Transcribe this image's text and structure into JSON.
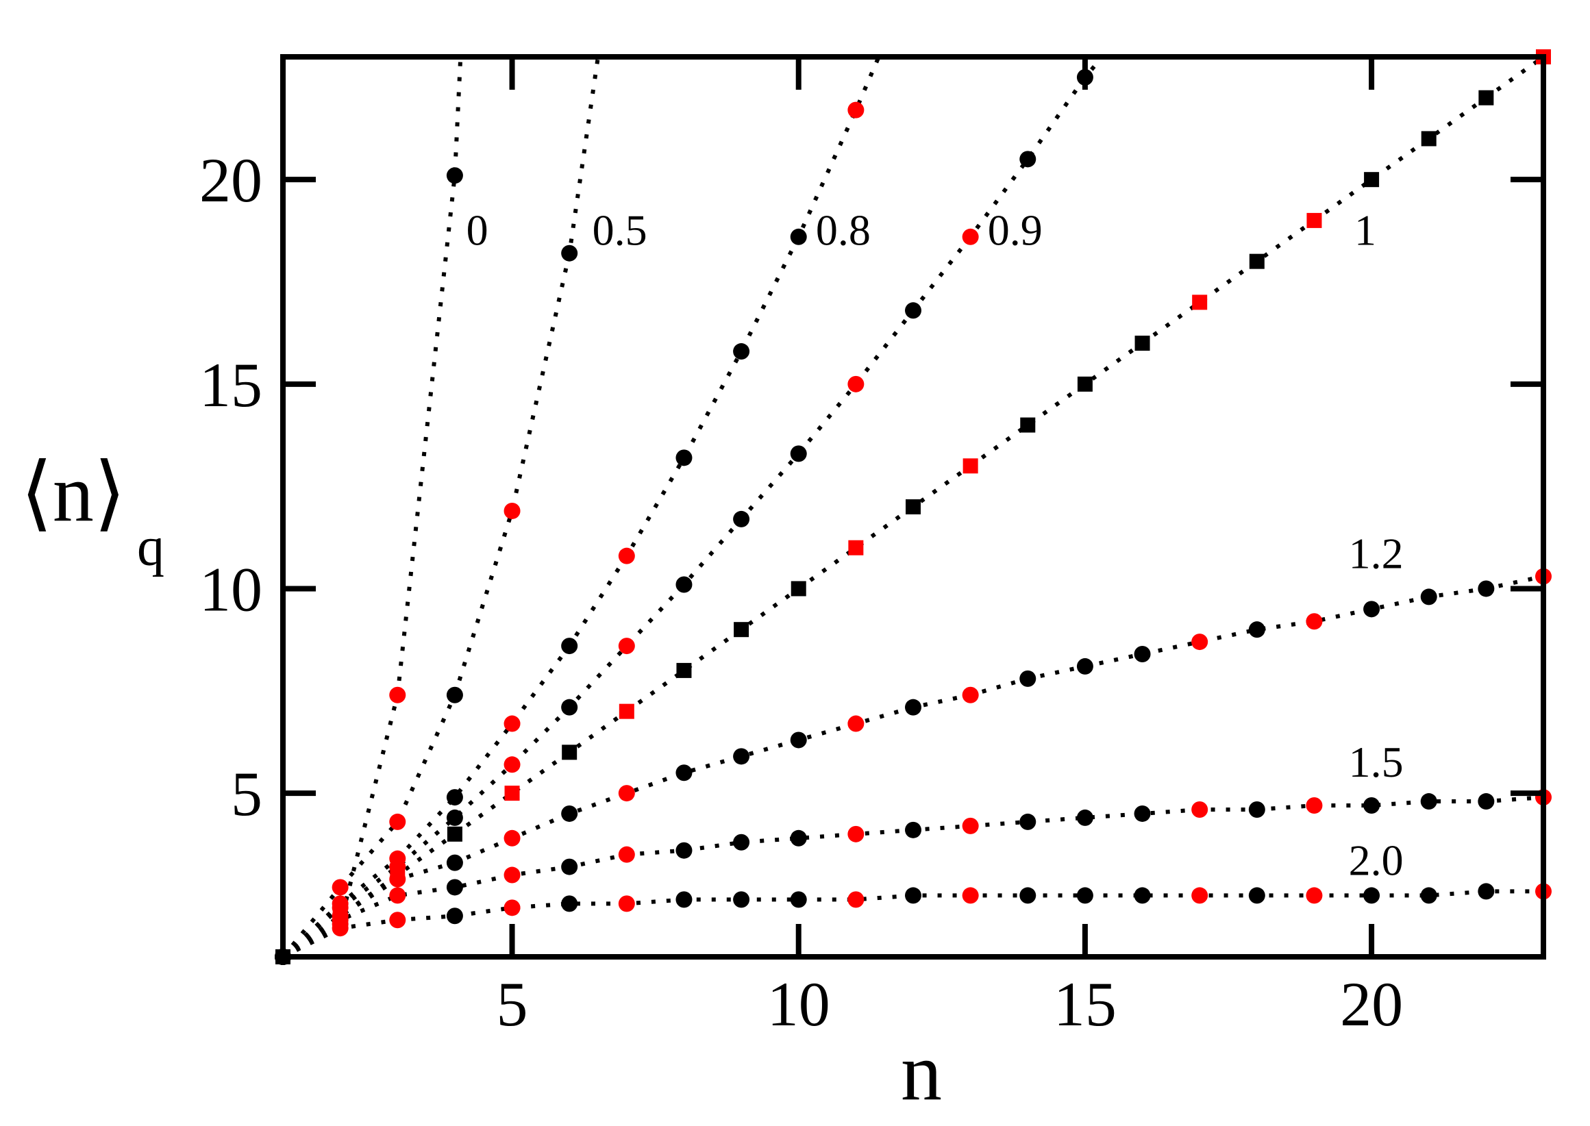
{
  "chart_data": {
    "type": "scatter",
    "title": "",
    "xlabel": "n",
    "ylabel": "⟨n⟩_q",
    "ylabel_main": "⟨n⟩",
    "ylabel_sub": "q",
    "xlim": [
      1,
      23
    ],
    "ylim": [
      1,
      23
    ],
    "xticks": [
      5,
      10,
      15,
      20
    ],
    "yticks": [
      5,
      10,
      15,
      20
    ],
    "grid": false,
    "legend": "none (inline series labels)",
    "marker_colors": {
      "composite": "#000000",
      "prime": "#ff0000"
    },
    "line_style": "dotted",
    "series": [
      {
        "name": "0",
        "marker": "circle",
        "label_pos": [
          4.2,
          18.4
        ],
        "points": [
          [
            1,
            1
          ],
          [
            2,
            1.8
          ],
          [
            3,
            7.4
          ],
          [
            4,
            20.1
          ]
        ],
        "line_end": [
          4.1,
          23
        ]
      },
      {
        "name": "0.5",
        "marker": "circle",
        "label_pos": [
          6.4,
          18.4
        ],
        "points": [
          [
            1,
            1
          ],
          [
            2,
            2.7
          ],
          [
            3,
            4.3
          ],
          [
            4,
            7.4
          ],
          [
            5,
            11.9
          ],
          [
            6,
            18.2
          ]
        ],
        "line_end": [
          6.5,
          23
        ]
      },
      {
        "name": "0.8",
        "marker": "circle",
        "label_pos": [
          10.3,
          18.4
        ],
        "points": [
          [
            1,
            1
          ],
          [
            2,
            2.3
          ],
          [
            3,
            3.4
          ],
          [
            4,
            4.9
          ],
          [
            5,
            6.7
          ],
          [
            6,
            8.6
          ],
          [
            7,
            10.8
          ],
          [
            8,
            13.2
          ],
          [
            9,
            15.8
          ],
          [
            10,
            18.6
          ],
          [
            11,
            21.7
          ]
        ],
        "line_end": [
          11.4,
          23
        ]
      },
      {
        "name": "0.9",
        "marker": "circle",
        "label_pos": [
          13.3,
          18.4
        ],
        "points": [
          [
            1,
            1
          ],
          [
            2,
            2.2
          ],
          [
            3,
            3.2
          ],
          [
            4,
            4.4
          ],
          [
            5,
            5.7
          ],
          [
            6,
            7.1
          ],
          [
            7,
            8.6
          ],
          [
            8,
            10.1
          ],
          [
            9,
            11.7
          ],
          [
            10,
            13.3
          ],
          [
            11,
            15.0
          ],
          [
            12,
            16.8
          ],
          [
            13,
            18.6
          ],
          [
            14,
            20.5
          ],
          [
            15,
            22.5
          ]
        ],
        "line_end": [
          15.3,
          23
        ]
      },
      {
        "name": "1",
        "marker": "square",
        "label_pos": [
          19.7,
          18.4
        ],
        "points": [
          [
            1,
            1
          ],
          [
            2,
            2
          ],
          [
            3,
            3
          ],
          [
            4,
            4
          ],
          [
            5,
            5
          ],
          [
            6,
            6
          ],
          [
            7,
            7
          ],
          [
            8,
            8
          ],
          [
            9,
            9
          ],
          [
            10,
            10
          ],
          [
            11,
            11
          ],
          [
            12,
            12
          ],
          [
            13,
            13
          ],
          [
            14,
            14
          ],
          [
            15,
            15
          ],
          [
            16,
            16
          ],
          [
            17,
            17
          ],
          [
            18,
            18
          ],
          [
            19,
            19
          ],
          [
            20,
            20
          ],
          [
            21,
            21
          ],
          [
            22,
            22
          ],
          [
            23,
            23
          ]
        ],
        "line_end": [
          23,
          23
        ]
      },
      {
        "name": "1.2",
        "marker": "circle",
        "label_pos": [
          19.6,
          10.5
        ],
        "points": [
          [
            1,
            1
          ],
          [
            2,
            2.0
          ],
          [
            3,
            2.9
          ],
          [
            4,
            3.3
          ],
          [
            5,
            3.9
          ],
          [
            6,
            4.5
          ],
          [
            7,
            5.0
          ],
          [
            8,
            5.5
          ],
          [
            9,
            5.9
          ],
          [
            10,
            6.3
          ],
          [
            11,
            6.7
          ],
          [
            12,
            7.1
          ],
          [
            13,
            7.4
          ],
          [
            14,
            7.8
          ],
          [
            15,
            8.1
          ],
          [
            16,
            8.4
          ],
          [
            17,
            8.7
          ],
          [
            18,
            9.0
          ],
          [
            19,
            9.2
          ],
          [
            20,
            9.5
          ],
          [
            21,
            9.8
          ],
          [
            22,
            10.0
          ],
          [
            23,
            10.3
          ]
        ],
        "line_end": [
          23,
          10.3
        ]
      },
      {
        "name": "1.5",
        "marker": "circle",
        "label_pos": [
          19.6,
          5.4
        ],
        "points": [
          [
            1,
            1
          ],
          [
            2,
            1.9
          ],
          [
            3,
            2.5
          ],
          [
            4,
            2.7
          ],
          [
            5,
            3.0
          ],
          [
            6,
            3.2
          ],
          [
            7,
            3.5
          ],
          [
            8,
            3.6
          ],
          [
            9,
            3.8
          ],
          [
            10,
            3.9
          ],
          [
            11,
            4.0
          ],
          [
            12,
            4.1
          ],
          [
            13,
            4.2
          ],
          [
            14,
            4.3
          ],
          [
            15,
            4.4
          ],
          [
            16,
            4.5
          ],
          [
            17,
            4.6
          ],
          [
            18,
            4.6
          ],
          [
            19,
            4.7
          ],
          [
            20,
            4.7
          ],
          [
            21,
            4.8
          ],
          [
            22,
            4.8
          ],
          [
            23,
            4.9
          ]
        ],
        "line_end": [
          23,
          4.9
        ]
      },
      {
        "name": "2.0",
        "marker": "circle",
        "label_pos": [
          19.6,
          3.0
        ],
        "points": [
          [
            1,
            1
          ],
          [
            2,
            1.7
          ],
          [
            3,
            1.9
          ],
          [
            4,
            2.0
          ],
          [
            5,
            2.2
          ],
          [
            6,
            2.3
          ],
          [
            7,
            2.3
          ],
          [
            8,
            2.4
          ],
          [
            9,
            2.4
          ],
          [
            10,
            2.4
          ],
          [
            11,
            2.4
          ],
          [
            12,
            2.5
          ],
          [
            13,
            2.5
          ],
          [
            14,
            2.5
          ],
          [
            15,
            2.5
          ],
          [
            16,
            2.5
          ],
          [
            17,
            2.5
          ],
          [
            18,
            2.5
          ],
          [
            19,
            2.5
          ],
          [
            20,
            2.5
          ],
          [
            21,
            2.5
          ],
          [
            22,
            2.6
          ],
          [
            23,
            2.6
          ]
        ],
        "line_end": [
          23,
          2.6
        ]
      }
    ],
    "prime_ns": [
      2,
      3,
      5,
      7,
      11,
      13,
      17,
      19,
      23
    ]
  }
}
